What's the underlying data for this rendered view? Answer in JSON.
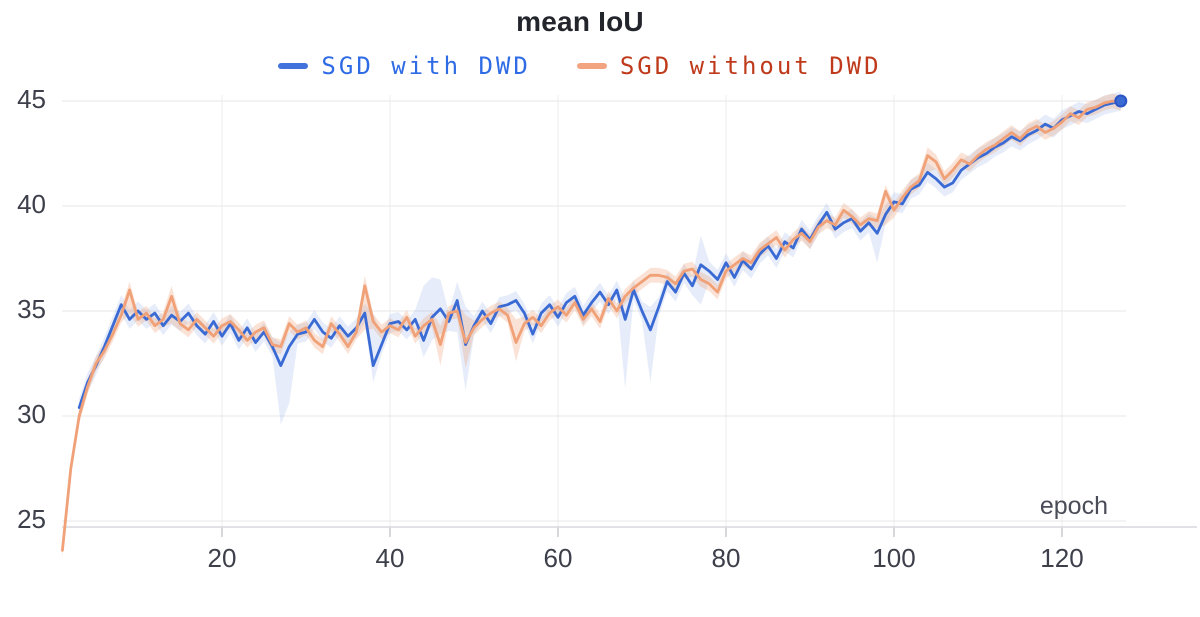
{
  "header": {
    "title": "mean IoU"
  },
  "legend": {
    "items": [
      {
        "label": "SGD with DWD",
        "marker_color": "#4273dd",
        "text_color": "#2e6be5"
      },
      {
        "label": "SGD without DWD",
        "marker_color": "#f2a480",
        "text_color": "#bf3a1b"
      }
    ]
  },
  "axis_style": {
    "grid_color": "#e7e7ea",
    "vgrid_color": "#eeeef1",
    "axis_line_color": "#d9d9de",
    "tick_color": "#c9c9cf",
    "label_color": "#3d404b"
  },
  "chart_data": {
    "type": "line",
    "title": "mean IoU",
    "xlabel": "epoch",
    "ylabel": "",
    "legend_position": "top-center",
    "grid": "horizontal major, faint vertical",
    "x_ticks": [
      20,
      40,
      60,
      80,
      100,
      120
    ],
    "y_ticks": [
      25,
      30,
      35,
      40,
      45
    ],
    "xlim": [
      0,
      128
    ],
    "ylim": [
      24.7,
      45.6
    ],
    "x_start_epoch": 1,
    "series": [
      {
        "name": "SGD with DWD",
        "color": "#3a6ad4",
        "band_color": "rgba(62,106,212,0.13)",
        "band_delta": 0.45,
        "end_marker": true,
        "values": [
          null,
          null,
          30.4,
          31.6,
          32.4,
          33.3,
          34.3,
          35.3,
          34.6,
          35.0,
          34.6,
          34.9,
          34.3,
          34.8,
          34.5,
          34.9,
          34.3,
          33.9,
          34.5,
          33.8,
          34.4,
          33.6,
          34.2,
          33.5,
          34.0,
          33.3,
          32.4,
          33.3,
          33.9,
          34.0,
          34.6,
          34.0,
          33.7,
          34.3,
          33.8,
          34.2,
          34.9,
          32.4,
          33.4,
          34.4,
          34.5,
          34.1,
          34.6,
          33.6,
          34.7,
          35.1,
          34.5,
          35.5,
          33.4,
          34.3,
          35.0,
          34.4,
          35.2,
          35.3,
          35.5,
          34.9,
          33.9,
          34.9,
          35.3,
          34.7,
          35.4,
          35.7,
          34.8,
          35.4,
          35.9,
          35.3,
          36.0,
          34.6,
          36.0,
          35.0,
          34.1,
          35.2,
          36.4,
          35.9,
          36.8,
          36.2,
          37.2,
          36.9,
          36.5,
          37.3,
          36.6,
          37.4,
          37.0,
          37.7,
          38.1,
          37.5,
          38.3,
          38.0,
          38.9,
          38.4,
          39.1,
          39.7,
          38.9,
          39.2,
          39.4,
          38.8,
          39.2,
          38.7,
          39.6,
          40.2,
          40.1,
          40.8,
          41.0,
          41.6,
          41.3,
          40.9,
          41.1,
          41.7,
          42.0,
          42.3,
          42.5,
          42.8,
          43.0,
          43.3,
          43.1,
          43.4,
          43.6,
          43.9,
          43.7,
          44.1,
          44.3,
          44.5,
          44.4,
          44.6,
          44.8,
          44.9,
          45.0
        ],
        "band_overrides": {
          "27": [
            29.6,
            33.5
          ],
          "28": [
            30.6,
            34.0
          ],
          "38": [
            31.6,
            34.9
          ],
          "44": [
            32.8,
            36.2
          ],
          "45": [
            33.6,
            36.6
          ],
          "46": [
            33.9,
            36.5
          ],
          "48": [
            34.0,
            36.4
          ],
          "49": [
            31.2,
            35.2
          ],
          "68": [
            31.3,
            35.6
          ],
          "71": [
            31.6,
            35.2
          ],
          "77": [
            35.3,
            38.6
          ],
          "98": [
            37.3,
            39.4
          ]
        }
      },
      {
        "name": "SGD without DWD",
        "color": "#f0a178",
        "band_color": "rgba(240,161,120,0.30)",
        "band_delta": 0.35,
        "end_marker": false,
        "values": [
          23.6,
          27.5,
          30.0,
          31.4,
          32.5,
          33.1,
          33.9,
          34.8,
          36.0,
          34.6,
          34.9,
          34.3,
          34.6,
          35.7,
          34.4,
          34.1,
          34.6,
          34.2,
          33.8,
          34.3,
          34.5,
          34.1,
          33.6,
          34.0,
          34.2,
          33.4,
          33.3,
          34.4,
          34.0,
          34.2,
          33.6,
          33.3,
          34.4,
          33.9,
          33.3,
          34.0,
          36.2,
          34.5,
          34.0,
          34.3,
          34.1,
          34.7,
          33.8,
          34.3,
          34.6,
          33.4,
          34.9,
          35.0,
          33.5,
          34.2,
          34.6,
          34.9,
          35.1,
          34.8,
          33.5,
          34.4,
          34.7,
          34.3,
          34.9,
          35.2,
          34.8,
          35.4,
          34.6,
          35.1,
          34.5,
          35.6,
          35.0,
          35.7,
          36.1,
          36.4,
          36.7,
          36.7,
          36.6,
          36.3,
          36.9,
          37.0,
          36.5,
          36.3,
          35.9,
          36.9,
          37.2,
          37.5,
          37.3,
          37.9,
          38.2,
          38.5,
          37.9,
          38.4,
          38.7,
          38.3,
          39.0,
          39.3,
          39.1,
          39.8,
          39.5,
          39.1,
          39.4,
          39.3,
          40.7,
          39.8,
          40.4,
          40.9,
          41.2,
          42.4,
          42.1,
          41.3,
          41.7,
          42.2,
          42.0,
          42.4,
          42.7,
          42.9,
          43.2,
          43.5,
          43.2,
          43.6,
          43.8,
          43.5,
          43.7,
          44.0,
          44.4,
          44.2,
          44.6,
          44.7,
          44.9,
          45.0,
          44.9
        ],
        "band_overrides": {
          "9": [
            34.9,
            36.4
          ],
          "14": [
            34.4,
            36.2
          ],
          "37": [
            34.1,
            36.7
          ],
          "46": [
            32.4,
            34.3
          ],
          "49": [
            32.3,
            34.8
          ],
          "55": [
            32.6,
            34.6
          ],
          "99": [
            39.1,
            41.0
          ],
          "104": [
            41.6,
            42.8
          ]
        }
      }
    ]
  }
}
